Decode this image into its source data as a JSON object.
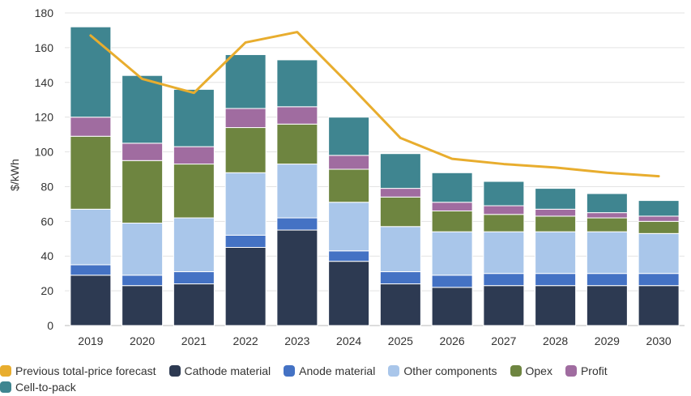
{
  "chart_data": {
    "type": "bar",
    "stacked": true,
    "categories": [
      "2019",
      "2020",
      "2021",
      "2022",
      "2023",
      "2024",
      "2025",
      "2026",
      "2027",
      "2028",
      "2029",
      "2030"
    ],
    "ylabel": "$/kWh",
    "ylim": [
      0,
      180
    ],
    "yticks": [
      0,
      20,
      40,
      60,
      80,
      100,
      120,
      140,
      160,
      180
    ],
    "grid": true,
    "legend_placement": "bottom",
    "series": [
      {
        "name": "Cathode material",
        "color": "#2d3a52",
        "values": [
          29,
          23,
          24,
          45,
          55,
          37,
          24,
          22,
          23,
          23,
          23,
          23
        ]
      },
      {
        "name": "Anode material",
        "color": "#4472c4",
        "values": [
          6,
          6,
          7,
          7,
          7,
          6,
          7,
          7,
          7,
          7,
          7,
          7
        ]
      },
      {
        "name": "Other components",
        "color": "#a9c6ea",
        "values": [
          32,
          30,
          31,
          36,
          31,
          28,
          26,
          25,
          24,
          24,
          24,
          23
        ]
      },
      {
        "name": "Opex",
        "color": "#6e8540",
        "values": [
          42,
          36,
          31,
          26,
          23,
          19,
          17,
          12,
          10,
          9,
          8,
          7
        ]
      },
      {
        "name": "Profit",
        "color": "#a06ca0",
        "values": [
          11,
          10,
          10,
          11,
          10,
          8,
          5,
          5,
          5,
          4,
          3,
          3
        ]
      },
      {
        "name": "Cell-to-pack",
        "color": "#3f8590",
        "values": [
          52,
          39,
          33,
          31,
          27,
          22,
          20,
          17,
          14,
          12,
          11,
          9
        ]
      }
    ],
    "line_series": {
      "name": "Previous total-price forecast",
      "color": "#e8ad2e",
      "values": [
        167,
        142,
        134,
        163,
        169,
        139,
        108,
        96,
        93,
        91,
        88,
        86
      ]
    },
    "legend": [
      {
        "name": "Previous total-price forecast",
        "color": "#e8ad2e"
      },
      {
        "name": "Cathode material",
        "color": "#2d3a52"
      },
      {
        "name": "Anode material",
        "color": "#4472c4"
      },
      {
        "name": "Other components",
        "color": "#a9c6ea"
      },
      {
        "name": "Opex",
        "color": "#6e8540"
      },
      {
        "name": "Profit",
        "color": "#a06ca0"
      },
      {
        "name": "Cell-to-pack",
        "color": "#3f8590"
      }
    ]
  }
}
